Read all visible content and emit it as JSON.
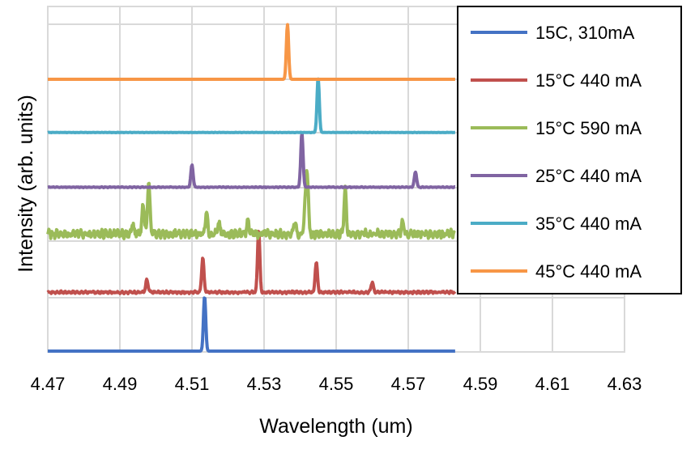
{
  "chart_data": {
    "type": "line",
    "title": "",
    "xlabel": "Wavelength (um)",
    "ylabel": "Intensity (arb. units)",
    "xlim": [
      4.47,
      4.63
    ],
    "x_ticks": [
      "4.47",
      "4.49",
      "4.51",
      "4.53",
      "4.55",
      "4.57",
      "4.59",
      "4.61",
      "4.63"
    ],
    "grid": true,
    "legend_position": "top-right",
    "series": [
      {
        "name": "15C, 310mA",
        "color": "#4472C4",
        "baseline_level": 0,
        "x_range": [
          4.47,
          4.583
        ],
        "noise": 0.0,
        "peaks": [
          {
            "x": 4.5135,
            "height": 1.35
          }
        ]
      },
      {
        "name": "15°C 440 mA",
        "color": "#C0504D",
        "baseline_level": 1,
        "x_range": [
          4.47,
          4.583
        ],
        "noise": 0.035,
        "peaks": [
          {
            "x": 4.4975,
            "height": 0.3
          },
          {
            "x": 4.513,
            "height": 0.85
          },
          {
            "x": 4.5285,
            "height": 1.55
          },
          {
            "x": 4.5445,
            "height": 0.75
          },
          {
            "x": 4.56,
            "height": 0.25
          }
        ]
      },
      {
        "name": "15°C 590 mA",
        "color": "#9BBB59",
        "baseline_level": 2,
        "x_range": [
          4.47,
          4.583
        ],
        "noise": 0.12,
        "peaks": [
          {
            "x": 4.4935,
            "height": 0.25
          },
          {
            "x": 4.4965,
            "height": 0.75
          },
          {
            "x": 4.498,
            "height": 1.3
          },
          {
            "x": 4.514,
            "height": 0.55
          },
          {
            "x": 4.5175,
            "height": 0.25
          },
          {
            "x": 4.5255,
            "height": 0.3
          },
          {
            "x": 4.5385,
            "height": 0.3
          },
          {
            "x": 4.5415,
            "height": 0.7
          },
          {
            "x": 4.542,
            "height": 1.35
          },
          {
            "x": 4.5525,
            "height": 1.1
          },
          {
            "x": 4.5685,
            "height": 0.3
          }
        ]
      },
      {
        "name": "25°C 440 mA",
        "color": "#8064A2",
        "baseline_level": 3,
        "x_range": [
          4.47,
          4.583
        ],
        "noise": 0.012,
        "peaks": [
          {
            "x": 4.51,
            "height": 0.55
          },
          {
            "x": 4.5405,
            "height": 1.35
          },
          {
            "x": 4.572,
            "height": 0.38
          }
        ]
      },
      {
        "name": "35°C 440 mA",
        "color": "#4BACC6",
        "baseline_level": 4,
        "x_range": [
          4.47,
          4.583
        ],
        "noise": 0.005,
        "peaks": [
          {
            "x": 4.545,
            "height": 1.35
          }
        ]
      },
      {
        "name": "45°C 440 mA",
        "color": "#F79646",
        "baseline_level": 5,
        "x_range": [
          4.47,
          4.583
        ],
        "noise": 0.0,
        "peaks": [
          {
            "x": 4.5365,
            "height": 1.35
          }
        ]
      }
    ]
  }
}
